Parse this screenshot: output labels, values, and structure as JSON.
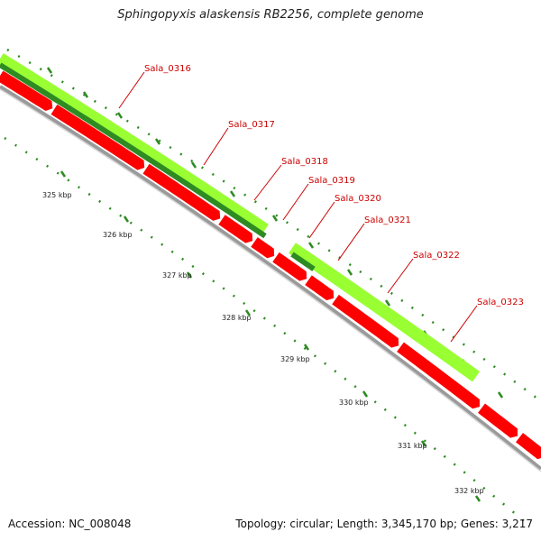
{
  "title": "Sphingopyxis alaskensis RB2256, complete genome",
  "footer": {
    "accession": "Accession: NC_008048",
    "summary": "Topology: circular; Length: 3,345,170 bp; Genes: 3,217"
  },
  "colors": {
    "cds_forward_light": "#99ff33",
    "cds_forward_dark": "#2e8b22",
    "cds_reverse": "#ff0000",
    "backbone": "#9a9a9a",
    "ticks": "#2e8b22",
    "gene_label": "#cc0000"
  },
  "scale_labels": [
    "325 kbp",
    "326 kbp",
    "327 kbp",
    "328 kbp",
    "329 kbp",
    "330 kbp",
    "331 kbp",
    "332 kbp"
  ],
  "gene_labels": [
    "Sala_0316",
    "Sala_0317",
    "Sala_0318",
    "Sala_0319",
    "Sala_0320",
    "Sala_0321",
    "Sala_0322",
    "Sala_0323"
  ]
}
